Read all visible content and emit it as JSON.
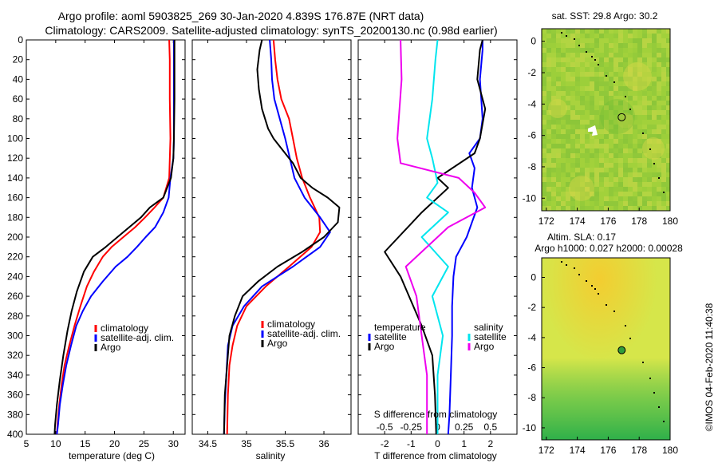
{
  "header": {
    "title_line1": "Argo profile: aoml 5903825_269 30-Jan-2020 4.839S 176.87E (NRT data)",
    "title_line2": "Climatology: CARS2009. Satellite-adjusted climatology: synTS_20200130.nc (0.98d earlier)"
  },
  "colors": {
    "climatology": "#ff0000",
    "satellite_adj": "#0000ff",
    "argo": "#000000",
    "temp_diff": "#0000ff",
    "sal_diff_sat": "#00e5ee",
    "sal_diff_argo": "#ee00ee",
    "map_base": "#9ccf3a",
    "map_warm": "#d8d84a",
    "altim_base": "#d6e64a",
    "altim_high": "#f3cd30",
    "altim_low": "#3bb84a"
  },
  "chart_data": [
    {
      "id": "temperature",
      "type": "line",
      "xlabel": "temperature (deg C)",
      "ylabel": "",
      "xlim": [
        5,
        32
      ],
      "ylim": [
        400,
        0
      ],
      "x_ticks": [
        5,
        10,
        15,
        20,
        25,
        30
      ],
      "y_ticks": [
        0,
        20,
        40,
        60,
        80,
        100,
        120,
        140,
        160,
        180,
        200,
        220,
        240,
        260,
        280,
        300,
        320,
        340,
        360,
        380,
        400
      ],
      "legend": [
        "climatology",
        "satellite-adj. clim.",
        "Argo"
      ],
      "series": [
        {
          "name": "climatology",
          "color": "#ff0000",
          "points": [
            [
              29.3,
              0
            ],
            [
              29.4,
              20
            ],
            [
              29.4,
              60
            ],
            [
              29.5,
              100
            ],
            [
              29.3,
              140
            ],
            [
              28.3,
              160
            ],
            [
              26.8,
              170
            ],
            [
              25.2,
              180
            ],
            [
              23.5,
              190
            ],
            [
              21.5,
              200
            ],
            [
              19.5,
              210
            ],
            [
              18.0,
              220
            ],
            [
              16.5,
              235
            ],
            [
              15.3,
              250
            ],
            [
              14.2,
              270
            ],
            [
              13.2,
              290
            ],
            [
              12.3,
              310
            ],
            [
              11.5,
              330
            ],
            [
              11.0,
              350
            ],
            [
              10.6,
              370
            ],
            [
              10.3,
              390
            ],
            [
              10.2,
              400
            ]
          ]
        },
        {
          "name": "satellite-adj. clim.",
          "color": "#0000ff",
          "points": [
            [
              30.1,
              0
            ],
            [
              30.1,
              40
            ],
            [
              30.1,
              100
            ],
            [
              30.0,
              120
            ],
            [
              29.5,
              140
            ],
            [
              29.2,
              160
            ],
            [
              28.3,
              175
            ],
            [
              26.9,
              190
            ],
            [
              25.3,
              200
            ],
            [
              23.8,
              210
            ],
            [
              22.2,
              220
            ],
            [
              20.2,
              230
            ],
            [
              18.0,
              245
            ],
            [
              16.0,
              260
            ],
            [
              14.6,
              275
            ],
            [
              13.5,
              290
            ],
            [
              12.6,
              310
            ],
            [
              11.8,
              330
            ],
            [
              11.2,
              350
            ],
            [
              10.7,
              370
            ],
            [
              10.4,
              390
            ],
            [
              10.2,
              400
            ]
          ]
        },
        {
          "name": "Argo",
          "color": "#000000",
          "points": [
            [
              30.2,
              0
            ],
            [
              30.2,
              10
            ],
            [
              30.2,
              60
            ],
            [
              30.1,
              100
            ],
            [
              30.0,
              120
            ],
            [
              29.6,
              140
            ],
            [
              28.3,
              160
            ],
            [
              26.0,
              170
            ],
            [
              24.5,
              180
            ],
            [
              22.5,
              190
            ],
            [
              20.5,
              200
            ],
            [
              18.5,
              210
            ],
            [
              16.3,
              220
            ],
            [
              14.8,
              235
            ],
            [
              13.6,
              255
            ],
            [
              12.7,
              275
            ],
            [
              12.0,
              295
            ],
            [
              11.3,
              320
            ],
            [
              10.7,
              345
            ],
            [
              10.2,
              370
            ],
            [
              9.9,
              390
            ],
            [
              9.8,
              400
            ]
          ]
        }
      ]
    },
    {
      "id": "salinity",
      "type": "line",
      "xlabel": "salinity",
      "xlim": [
        34.3,
        36.35
      ],
      "ylim": [
        400,
        0
      ],
      "x_ticks": [
        34.5,
        35,
        35.5,
        36
      ],
      "legend": [
        "climatology",
        "satellite-adj. clim.",
        "Argo"
      ],
      "series": [
        {
          "name": "climatology",
          "color": "#ff0000",
          "points": [
            [
              35.35,
              0
            ],
            [
              35.37,
              20
            ],
            [
              35.4,
              40
            ],
            [
              35.45,
              60
            ],
            [
              35.55,
              80
            ],
            [
              35.6,
              100
            ],
            [
              35.65,
              120
            ],
            [
              35.72,
              140
            ],
            [
              35.82,
              160
            ],
            [
              35.94,
              180
            ],
            [
              35.95,
              195
            ],
            [
              35.84,
              210
            ],
            [
              35.55,
              230
            ],
            [
              35.25,
              250
            ],
            [
              35.0,
              270
            ],
            [
              34.88,
              290
            ],
            [
              34.82,
              310
            ],
            [
              34.78,
              330
            ],
            [
              34.76,
              360
            ],
            [
              34.75,
              400
            ]
          ]
        },
        {
          "name": "satellite-adj. clim.",
          "color": "#0000ff",
          "points": [
            [
              35.3,
              0
            ],
            [
              35.32,
              20
            ],
            [
              35.33,
              40
            ],
            [
              35.36,
              60
            ],
            [
              35.43,
              80
            ],
            [
              35.5,
              100
            ],
            [
              35.56,
              120
            ],
            [
              35.62,
              140
            ],
            [
              35.75,
              160
            ],
            [
              35.95,
              180
            ],
            [
              36.08,
              195
            ],
            [
              35.95,
              210
            ],
            [
              35.6,
              230
            ],
            [
              35.2,
              250
            ],
            [
              34.97,
              270
            ],
            [
              34.82,
              290
            ],
            [
              34.76,
              310
            ],
            [
              34.74,
              340
            ],
            [
              34.72,
              370
            ],
            [
              34.71,
              400
            ]
          ]
        },
        {
          "name": "Argo",
          "color": "#000000",
          "points": [
            [
              35.2,
              0
            ],
            [
              35.17,
              10
            ],
            [
              35.14,
              30
            ],
            [
              35.16,
              50
            ],
            [
              35.2,
              70
            ],
            [
              35.28,
              90
            ],
            [
              35.35,
              100
            ],
            [
              35.45,
              110
            ],
            [
              35.6,
              125
            ],
            [
              35.7,
              140
            ],
            [
              35.85,
              150
            ],
            [
              36.05,
              160
            ],
            [
              36.2,
              170
            ],
            [
              36.18,
              185
            ],
            [
              36.0,
              200
            ],
            [
              35.72,
              215
            ],
            [
              35.4,
              230
            ],
            [
              35.15,
              245
            ],
            [
              34.95,
              260
            ],
            [
              34.85,
              280
            ],
            [
              34.78,
              300
            ],
            [
              34.75,
              330
            ],
            [
              34.72,
              360
            ],
            [
              34.71,
              400
            ]
          ]
        }
      ]
    },
    {
      "id": "difference",
      "type": "line",
      "xlabel": "T difference from climatology",
      "xlabel_top": "S difference from climatology",
      "xlim": [
        -3,
        3
      ],
      "ylim": [
        400,
        0
      ],
      "x_ticks": [
        -2,
        -1,
        0,
        1,
        2
      ],
      "top_ticks": [
        -0.5,
        -0.25,
        0,
        0.25,
        0.5
      ],
      "legend_temperature": {
        "title": "temperature",
        "items": [
          "satellite",
          "Argo"
        ]
      },
      "legend_salinity": {
        "title": "salinity",
        "items": [
          "satellite",
          "Argo"
        ]
      },
      "series": [
        {
          "name": "temperature satellite",
          "color": "#0000ff",
          "points": [
            [
              1.7,
              0
            ],
            [
              1.7,
              10
            ],
            [
              1.6,
              40
            ],
            [
              1.7,
              80
            ],
            [
              1.6,
              100
            ],
            [
              1.2,
              115
            ],
            [
              1.4,
              130
            ],
            [
              1.3,
              150
            ],
            [
              1.5,
              170
            ],
            [
              1.3,
              185
            ],
            [
              1.1,
              200
            ],
            [
              0.7,
              220
            ],
            [
              0.6,
              240
            ],
            [
              0.55,
              270
            ],
            [
              0.55,
              300
            ],
            [
              0.5,
              340
            ],
            [
              0.45,
              380
            ],
            [
              0.4,
              400
            ]
          ]
        },
        {
          "name": "temperature Argo",
          "color": "#000000",
          "points": [
            [
              1.7,
              0
            ],
            [
              1.6,
              10
            ],
            [
              1.5,
              40
            ],
            [
              1.8,
              70
            ],
            [
              1.6,
              100
            ],
            [
              1.4,
              115
            ],
            [
              0.0,
              140
            ],
            [
              0.4,
              150
            ],
            [
              -0.6,
              175
            ],
            [
              -2.0,
              215
            ],
            [
              -1.4,
              240
            ],
            [
              -0.6,
              290
            ],
            [
              -0.2,
              320
            ],
            [
              -0.1,
              360
            ],
            [
              -0.05,
              400
            ]
          ]
        },
        {
          "name": "salinity satellite",
          "color": "#00e5ee",
          "points": [
            [
              0.0,
              0
            ],
            [
              -0.02,
              20
            ],
            [
              -0.05,
              60
            ],
            [
              -0.1,
              100
            ],
            [
              -0.05,
              120
            ],
            [
              0.0,
              145
            ],
            [
              -0.1,
              160
            ],
            [
              0.1,
              175
            ],
            [
              -0.15,
              200
            ],
            [
              0.1,
              230
            ],
            [
              -0.05,
              260
            ],
            [
              0.05,
              300
            ],
            [
              0.0,
              340
            ],
            [
              0.0,
              400
            ]
          ]
        },
        {
          "name": "salinity Argo",
          "color": "#ee00ee",
          "points": [
            [
              -0.35,
              0
            ],
            [
              -0.34,
              40
            ],
            [
              -0.38,
              100
            ],
            [
              -0.35,
              125
            ],
            [
              0.2,
              140
            ],
            [
              0.35,
              155
            ],
            [
              0.45,
              170
            ],
            [
              0.1,
              190
            ],
            [
              -0.3,
              230
            ],
            [
              -0.2,
              260
            ],
            [
              -0.15,
              300
            ],
            [
              -0.1,
              340
            ],
            [
              -0.1,
              400
            ]
          ]
        }
      ]
    },
    {
      "id": "sst_map",
      "type": "heatmap",
      "title": "sat. SST: 29.8 Argo: 30.2",
      "xlim": [
        171.7,
        180
      ],
      "ylim": [
        -10.8,
        0.8
      ],
      "x_ticks": [
        172,
        174,
        176,
        178,
        180
      ],
      "y_ticks": [
        0,
        -2,
        -4,
        -6,
        -8,
        -10
      ],
      "marker": [
        176.87,
        -4.839
      ]
    },
    {
      "id": "altimetry_map",
      "type": "heatmap",
      "title_line1": "Altim. SLA: 0.17",
      "title_line2": "Argo h1000: 0.027 h2000: 0.00028",
      "xlim": [
        171.7,
        180
      ],
      "ylim": [
        -10.8,
        1.3
      ],
      "x_ticks": [
        172,
        174,
        176,
        178,
        180
      ],
      "y_ticks": [
        0,
        -2,
        -4,
        -6,
        -8,
        -10
      ],
      "marker": [
        176.87,
        -4.839
      ]
    }
  ],
  "footer": {
    "timestamp": "©IMOS 04-Feb-2020 11:40:38"
  }
}
